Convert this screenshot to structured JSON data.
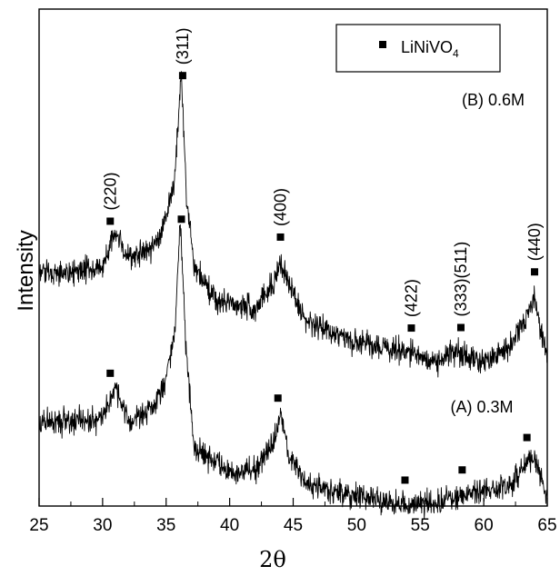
{
  "chart_data": {
    "type": "line",
    "xlabel": "2θ",
    "ylabel": "Intensity",
    "xlim": [
      25,
      65
    ],
    "x_ticks": [
      "25",
      "30",
      "35",
      "40",
      "45",
      "50",
      "55",
      "60",
      "65"
    ],
    "grid": false,
    "legend": {
      "position": "top-right",
      "entries": [
        {
          "marker": "square",
          "label": "LiNiVO",
          "subscript": "4"
        }
      ]
    },
    "series": [
      {
        "name": "(B) 0.6M",
        "baseline_profile": [
          [
            25,
            0.47
          ],
          [
            28,
            0.47
          ],
          [
            30,
            0.48
          ],
          [
            31,
            0.55
          ],
          [
            32,
            0.5
          ],
          [
            34,
            0.52
          ],
          [
            35,
            0.58
          ],
          [
            35.7,
            0.66
          ],
          [
            36.2,
            0.88
          ],
          [
            36.6,
            0.62
          ],
          [
            37.2,
            0.48
          ],
          [
            39,
            0.41
          ],
          [
            42,
            0.4
          ],
          [
            43.5,
            0.45
          ],
          [
            44,
            0.49
          ],
          [
            44.6,
            0.45
          ],
          [
            46,
            0.37
          ],
          [
            50,
            0.33
          ],
          [
            54,
            0.31
          ],
          [
            56,
            0.29
          ],
          [
            58,
            0.31
          ],
          [
            60,
            0.29
          ],
          [
            62,
            0.32
          ],
          [
            63.3,
            0.38
          ],
          [
            64,
            0.42
          ],
          [
            65,
            0.29
          ]
        ],
        "peaks": [
          {
            "hkl": "(220)",
            "x": 30.6
          },
          {
            "hkl": "(311)",
            "x": 36.3
          },
          {
            "hkl": "(400)",
            "x": 44.0
          },
          {
            "hkl": "(422)",
            "x": 54.3
          },
          {
            "hkl": "(333)(511)",
            "x": 58.2
          },
          {
            "hkl": "(440)",
            "x": 64.0
          }
        ]
      },
      {
        "name": "(A) 0.3M",
        "baseline_profile": [
          [
            25,
            0.17
          ],
          [
            28,
            0.17
          ],
          [
            30,
            0.18
          ],
          [
            31,
            0.24
          ],
          [
            32,
            0.17
          ],
          [
            34,
            0.2
          ],
          [
            35,
            0.26
          ],
          [
            35.7,
            0.35
          ],
          [
            36.1,
            0.58
          ],
          [
            36.6,
            0.31
          ],
          [
            37.2,
            0.12
          ],
          [
            40,
            0.07
          ],
          [
            42,
            0.07
          ],
          [
            43.5,
            0.13
          ],
          [
            44,
            0.19
          ],
          [
            44.6,
            0.11
          ],
          [
            46,
            0.04
          ],
          [
            50,
            0.02
          ],
          [
            54,
            0.0
          ],
          [
            56,
            0.01
          ],
          [
            58,
            0.02
          ],
          [
            60,
            0.03
          ],
          [
            62,
            0.04
          ],
          [
            63.5,
            0.09
          ],
          [
            64,
            0.1
          ],
          [
            65,
            0.02
          ]
        ],
        "peaks": [
          {
            "hkl": "",
            "x": 30.6
          },
          {
            "hkl": "",
            "x": 36.2
          },
          {
            "hkl": "",
            "x": 43.8
          },
          {
            "hkl": "",
            "x": 53.8
          },
          {
            "hkl": "",
            "x": 58.3
          },
          {
            "hkl": "",
            "x": 63.4
          }
        ]
      }
    ]
  }
}
